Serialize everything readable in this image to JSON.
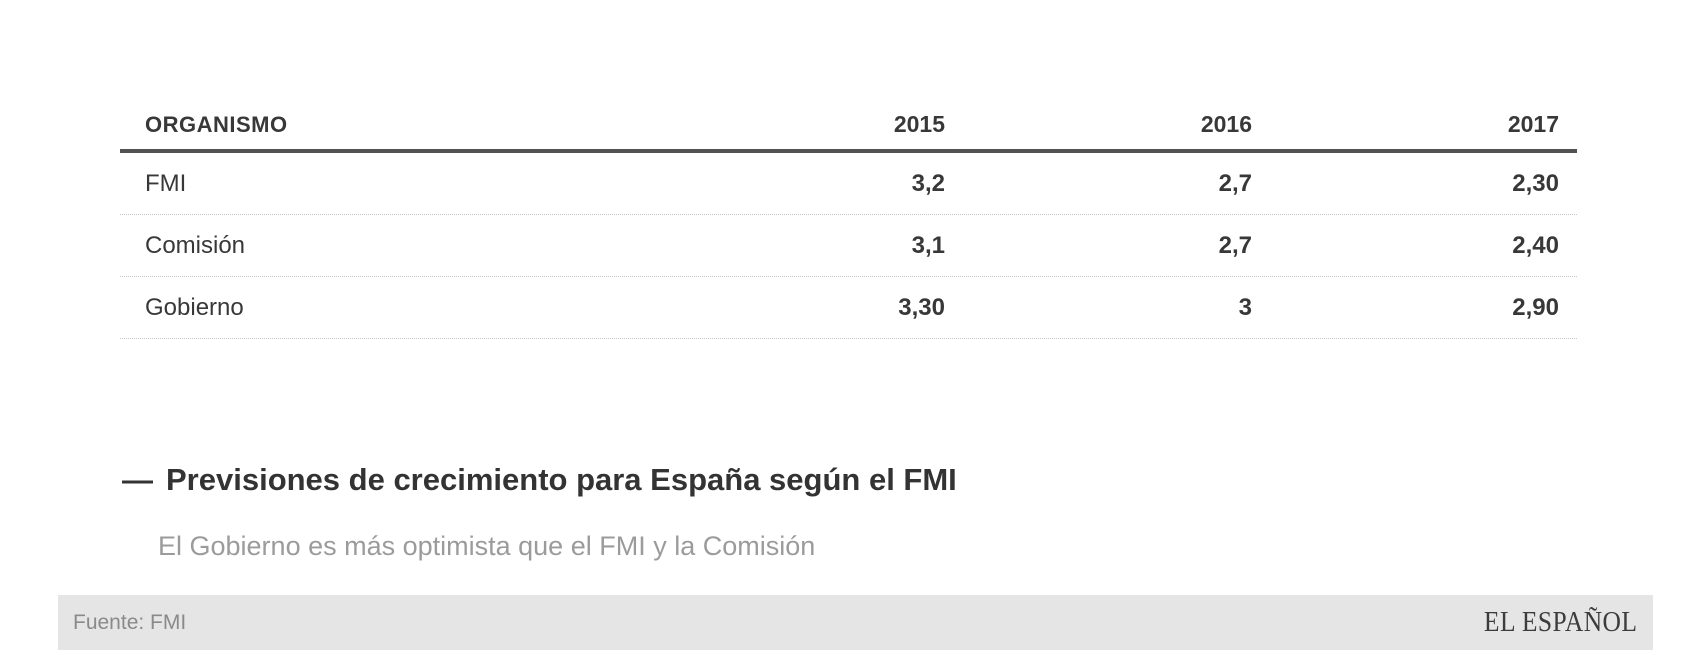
{
  "table": {
    "columns": [
      "ORGANISMO",
      "2015",
      "2016",
      "2017"
    ],
    "rows": [
      {
        "organismo": "FMI",
        "values": [
          "3,2",
          "2,7",
          "2,30"
        ]
      },
      {
        "organismo": "Comisión",
        "values": [
          "3,1",
          "2,7",
          "2,40"
        ]
      },
      {
        "organismo": "Gobierno",
        "values": [
          "3,30",
          "3",
          "2,90"
        ]
      }
    ]
  },
  "title": {
    "dash": "—",
    "text": "Previsiones de crecimiento para España según el FMI"
  },
  "subtitle": "El Gobierno es más optimista que el FMI y la Comisión",
  "footer": {
    "source": "Fuente: FMI",
    "brand": "EL ESPAÑOL"
  },
  "colors": {
    "text_dark": "#383838",
    "header_rule": "#525252",
    "row_separator": "#c6c6c6",
    "subtitle_gray": "#9b9b9b",
    "footer_background": "#e5e5e5",
    "footer_text": "#8a8a8a"
  },
  "chart_data": {
    "type": "table",
    "title": "Previsiones de crecimiento para España según el FMI",
    "subtitle": "El Gobierno es más optimista que el FMI y la Comisión",
    "source": "Fuente: FMI",
    "columns": [
      "ORGANISMO",
      "2015",
      "2016",
      "2017"
    ],
    "rows": [
      [
        "FMI",
        "3,2",
        "2,7",
        "2,30"
      ],
      [
        "Comisión",
        "3,1",
        "2,7",
        "2,40"
      ],
      [
        "Gobierno",
        "3,30",
        "3",
        "2,90"
      ]
    ],
    "values_numeric": {
      "FMI": [
        3.2,
        2.7,
        2.3
      ],
      "Comisión": [
        3.1,
        2.7,
        2.4
      ],
      "Gobierno": [
        3.3,
        3.0,
        2.9
      ]
    }
  }
}
